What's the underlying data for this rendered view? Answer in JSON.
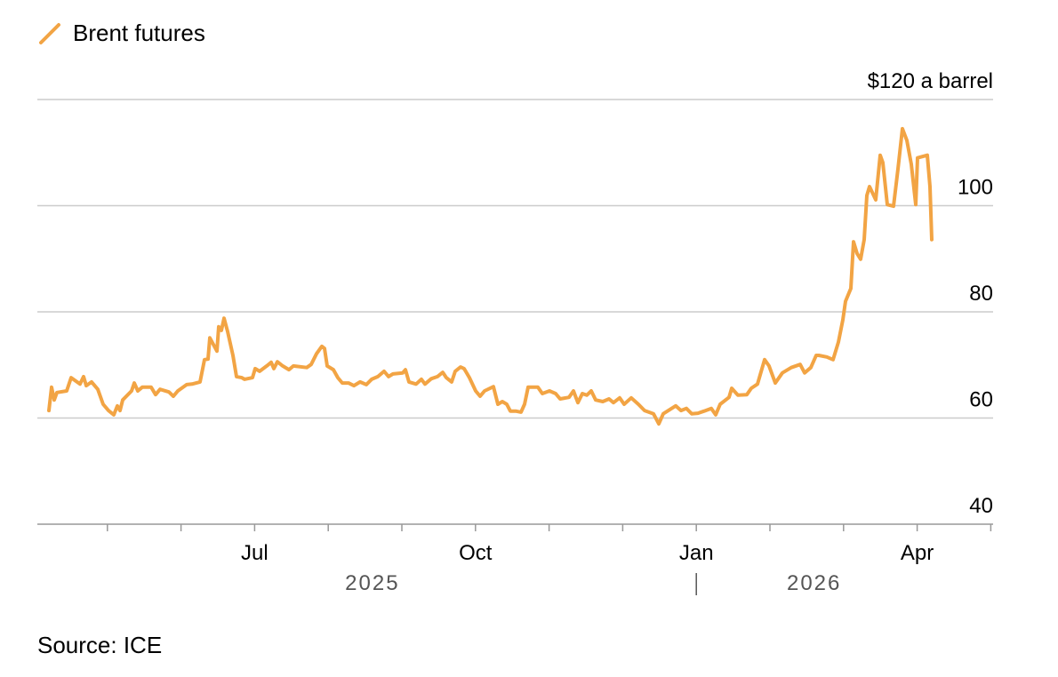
{
  "legend": {
    "label": "Brent futures",
    "color": "#F2A444"
  },
  "source": "Source: ICE",
  "chart_data": {
    "type": "line",
    "title": "",
    "ylabel": "$120 a barrel",
    "xlabel": "",
    "ylim": [
      40,
      120
    ],
    "yticks": [
      40,
      60,
      80,
      100,
      120
    ],
    "ytick_labels": [
      "40",
      "60",
      "80",
      "100",
      "$120 a barrel"
    ],
    "x_units": "months since Apr 1, 2025",
    "xlim": [
      0,
      13
    ],
    "x_tick_months": [
      1,
      2,
      3,
      4,
      5,
      6,
      7,
      8,
      9,
      10,
      11,
      12,
      13
    ],
    "x_labels": [
      {
        "m": 3,
        "label": "Jul"
      },
      {
        "m": 6,
        "label": "Oct"
      },
      {
        "m": 9,
        "label": "Jan"
      },
      {
        "m": 12,
        "label": "Apr"
      }
    ],
    "year_labels": [
      {
        "m": 4.6,
        "label": "2025"
      },
      {
        "m": 10.6,
        "label": "2026"
      }
    ],
    "year_separator": "|",
    "grid": true,
    "legend_position": "top-left",
    "series": [
      {
        "name": "Brent futures",
        "color": "#F2A444",
        "points": [
          [
            0.205,
            61.4
          ],
          [
            0.242,
            65.8
          ],
          [
            0.278,
            63.4
          ],
          [
            0.314,
            64.8
          ],
          [
            0.447,
            65.1
          ],
          [
            0.507,
            67.6
          ],
          [
            0.628,
            66.4
          ],
          [
            0.676,
            67.8
          ],
          [
            0.713,
            66.1
          ],
          [
            0.785,
            66.8
          ],
          [
            0.87,
            65.4
          ],
          [
            0.942,
            62.6
          ],
          [
            1.014,
            61.4
          ],
          [
            1.087,
            60.6
          ],
          [
            1.135,
            62.3
          ],
          [
            1.171,
            61.4
          ],
          [
            1.208,
            63.4
          ],
          [
            1.329,
            65.1
          ],
          [
            1.365,
            66.6
          ],
          [
            1.413,
            65.1
          ],
          [
            1.473,
            65.8
          ],
          [
            1.594,
            65.8
          ],
          [
            1.655,
            64.4
          ],
          [
            1.715,
            65.4
          ],
          [
            1.836,
            64.9
          ],
          [
            1.896,
            64.1
          ],
          [
            1.957,
            65.1
          ],
          [
            2.077,
            66.3
          ],
          [
            2.15,
            66.4
          ],
          [
            2.258,
            66.8
          ],
          [
            2.319,
            71.0
          ],
          [
            2.367,
            71.1
          ],
          [
            2.391,
            75.1
          ],
          [
            2.488,
            72.6
          ],
          [
            2.512,
            77.2
          ],
          [
            2.548,
            76.5
          ],
          [
            2.585,
            78.8
          ],
          [
            2.633,
            76.3
          ],
          [
            2.705,
            71.8
          ],
          [
            2.754,
            67.8
          ],
          [
            2.826,
            67.6
          ],
          [
            2.862,
            67.3
          ],
          [
            2.971,
            67.6
          ],
          [
            3.007,
            69.3
          ],
          [
            3.068,
            68.8
          ],
          [
            3.164,
            69.8
          ],
          [
            3.225,
            70.5
          ],
          [
            3.261,
            69.3
          ],
          [
            3.309,
            70.6
          ],
          [
            3.382,
            69.8
          ],
          [
            3.466,
            69.1
          ],
          [
            3.527,
            69.8
          ],
          [
            3.708,
            69.5
          ],
          [
            3.768,
            70.1
          ],
          [
            3.841,
            72.1
          ],
          [
            3.913,
            73.5
          ],
          [
            3.949,
            73.1
          ],
          [
            3.986,
            69.8
          ],
          [
            4.07,
            69.1
          ],
          [
            4.13,
            67.6
          ],
          [
            4.191,
            66.6
          ],
          [
            4.275,
            66.6
          ],
          [
            4.348,
            66.1
          ],
          [
            4.432,
            66.8
          ],
          [
            4.517,
            66.3
          ],
          [
            4.589,
            67.3
          ],
          [
            4.674,
            67.8
          ],
          [
            4.758,
            68.8
          ],
          [
            4.819,
            67.8
          ],
          [
            4.879,
            68.3
          ],
          [
            5.012,
            68.5
          ],
          [
            5.048,
            69.1
          ],
          [
            5.097,
            66.8
          ],
          [
            5.193,
            66.4
          ],
          [
            5.266,
            67.3
          ],
          [
            5.314,
            66.4
          ],
          [
            5.399,
            67.4
          ],
          [
            5.483,
            67.8
          ],
          [
            5.556,
            68.6
          ],
          [
            5.604,
            67.6
          ],
          [
            5.676,
            66.8
          ],
          [
            5.725,
            68.8
          ],
          [
            5.797,
            69.6
          ],
          [
            5.845,
            69.3
          ],
          [
            5.918,
            67.6
          ],
          [
            6.002,
            65.1
          ],
          [
            6.063,
            64.1
          ],
          [
            6.123,
            65.1
          ],
          [
            6.244,
            65.9
          ],
          [
            6.304,
            62.6
          ],
          [
            6.365,
            63.1
          ],
          [
            6.425,
            62.6
          ],
          [
            6.473,
            61.3
          ],
          [
            6.546,
            61.3
          ],
          [
            6.618,
            61.1
          ],
          [
            6.667,
            62.6
          ],
          [
            6.715,
            65.8
          ],
          [
            6.787,
            65.8
          ],
          [
            6.848,
            65.8
          ],
          [
            6.908,
            64.6
          ],
          [
            7.005,
            65.1
          ],
          [
            7.089,
            64.6
          ],
          [
            7.15,
            63.6
          ],
          [
            7.271,
            63.9
          ],
          [
            7.331,
            65.1
          ],
          [
            7.391,
            62.9
          ],
          [
            7.452,
            64.6
          ],
          [
            7.512,
            64.3
          ],
          [
            7.572,
            65.1
          ],
          [
            7.633,
            63.4
          ],
          [
            7.729,
            63.1
          ],
          [
            7.814,
            63.6
          ],
          [
            7.874,
            62.9
          ],
          [
            7.959,
            63.8
          ],
          [
            8.019,
            62.6
          ],
          [
            8.116,
            63.8
          ],
          [
            8.213,
            62.6
          ],
          [
            8.297,
            61.4
          ],
          [
            8.418,
            60.8
          ],
          [
            8.49,
            58.9
          ],
          [
            8.551,
            60.8
          ],
          [
            8.72,
            62.3
          ],
          [
            8.792,
            61.4
          ],
          [
            8.865,
            61.8
          ],
          [
            8.937,
            60.8
          ],
          [
            9.022,
            60.9
          ],
          [
            9.106,
            61.3
          ],
          [
            9.203,
            61.8
          ],
          [
            9.263,
            60.6
          ],
          [
            9.324,
            62.6
          ],
          [
            9.444,
            63.9
          ],
          [
            9.481,
            65.6
          ],
          [
            9.565,
            64.3
          ],
          [
            9.686,
            64.4
          ],
          [
            9.746,
            65.6
          ],
          [
            9.831,
            66.4
          ],
          [
            9.928,
            71.0
          ],
          [
            9.988,
            69.8
          ],
          [
            10.072,
            66.6
          ],
          [
            10.169,
            68.5
          ],
          [
            10.29,
            69.5
          ],
          [
            10.411,
            70.1
          ],
          [
            10.471,
            68.5
          ],
          [
            10.556,
            69.5
          ],
          [
            10.628,
            71.8
          ],
          [
            10.664,
            71.8
          ],
          [
            10.773,
            71.5
          ],
          [
            10.857,
            71.0
          ],
          [
            10.93,
            74.3
          ],
          [
            10.99,
            78.5
          ],
          [
            11.027,
            82.0
          ],
          [
            11.099,
            84.4
          ],
          [
            11.135,
            93.2
          ],
          [
            11.184,
            91.0
          ],
          [
            11.232,
            89.9
          ],
          [
            11.28,
            93.6
          ],
          [
            11.316,
            101.9
          ],
          [
            11.353,
            103.6
          ],
          [
            11.437,
            101.1
          ],
          [
            11.498,
            109.5
          ],
          [
            11.534,
            108.1
          ],
          [
            11.594,
            100.2
          ],
          [
            11.679,
            99.9
          ],
          [
            11.739,
            106.9
          ],
          [
            11.8,
            114.5
          ],
          [
            11.86,
            112.3
          ],
          [
            11.92,
            107.8
          ],
          [
            11.981,
            100.2
          ],
          [
            12.005,
            109.0
          ],
          [
            12.138,
            109.5
          ],
          [
            12.174,
            103.6
          ],
          [
            12.198,
            93.6
          ]
        ]
      }
    ]
  }
}
